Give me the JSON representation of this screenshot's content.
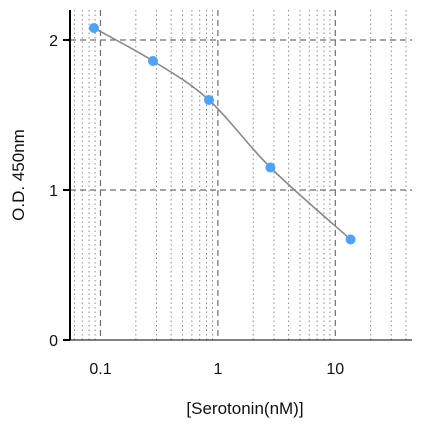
{
  "chart_data": {
    "type": "scatter",
    "title": "",
    "xlabel": "[Serotonin(nM)]",
    "ylabel": "O.D. 450nm",
    "x_scale": "log",
    "xlim": [
      0.055,
      45
    ],
    "ylim": [
      0,
      2.2
    ],
    "x_ticks": [
      0.1,
      1,
      10
    ],
    "x_tick_labels": [
      "0.1",
      "1",
      "10"
    ],
    "y_ticks": [
      0,
      1,
      2
    ],
    "y_tick_labels": [
      "0",
      "1",
      "2"
    ],
    "grid": true,
    "legend": "none",
    "series": [
      {
        "points": [
          {
            "x": 0.088,
            "y": 2.08
          },
          {
            "x": 0.28,
            "y": 1.86
          },
          {
            "x": 0.84,
            "y": 1.6
          },
          {
            "x": 2.8,
            "y": 1.15
          },
          {
            "x": 13.5,
            "y": 0.67
          }
        ],
        "fit_curve": true
      }
    ],
    "colors": {
      "points": "#4da3f5",
      "curve": "#8a8a8a",
      "major_grid": "#6f6f6f",
      "minor_grid": "#8c8c8c",
      "axis": "#000000"
    }
  }
}
